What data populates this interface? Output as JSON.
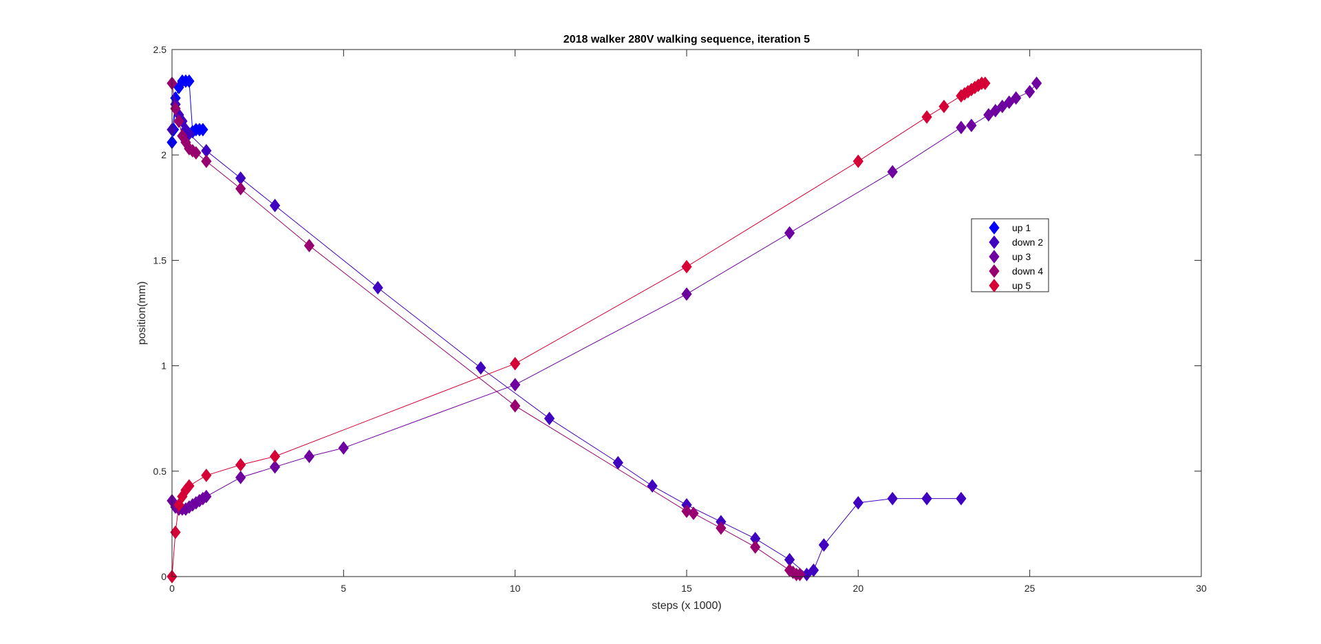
{
  "chart_data": {
    "type": "line",
    "title": "2018 walker 280V walking sequence, iteration 5",
    "xlabel": "steps (x 1000)",
    "ylabel": "position(mm)",
    "xlim": [
      0,
      30
    ],
    "ylim": [
      0,
      2.5
    ],
    "xticks": [
      "0",
      "5",
      "10",
      "15",
      "20",
      "25",
      "30"
    ],
    "yticks": [
      "0",
      "0.5",
      "1",
      "1.5",
      "2",
      "2.5"
    ],
    "grid": false,
    "legend": "right",
    "marker": "diamond",
    "series": [
      {
        "name": "up 1",
        "color": "#0000FF",
        "x": [
          0,
          0.05,
          0.1,
          0.2,
          0.3,
          0.4,
          0.5,
          0.6,
          0.7,
          0.8,
          0.9
        ],
        "y": [
          2.06,
          2.12,
          2.27,
          2.32,
          2.35,
          2.35,
          2.35,
          2.11,
          2.12,
          2.12,
          2.12
        ]
      },
      {
        "name": "down 2",
        "color": "#3F00C0",
        "x": [
          0,
          0.1,
          0.2,
          0.3,
          0.4,
          0.5,
          1,
          2,
          3,
          6,
          9,
          11,
          13,
          14,
          15,
          16,
          17,
          18,
          18.5,
          18.7,
          19,
          20,
          21,
          22,
          23
        ],
        "y": [
          2.12,
          2.24,
          2.19,
          2.16,
          2.12,
          2.1,
          2.02,
          1.89,
          1.76,
          1.37,
          0.99,
          0.75,
          0.54,
          0.43,
          0.34,
          0.26,
          0.18,
          0.08,
          0.01,
          0.03,
          0.15,
          0.35,
          0.37,
          0.37,
          0.37
        ]
      },
      {
        "name": "up 3",
        "color": "#6E00A0",
        "x": [
          0,
          0.1,
          0.2,
          0.3,
          0.4,
          0.5,
          0.6,
          0.7,
          0.8,
          0.9,
          1,
          2,
          3,
          4,
          5,
          10,
          15,
          18,
          21,
          23,
          23.3,
          23.8,
          24,
          24.2,
          24.4,
          24.6,
          25,
          25.2
        ],
        "y": [
          0.36,
          0.33,
          0.32,
          0.32,
          0.32,
          0.33,
          0.34,
          0.35,
          0.36,
          0.37,
          0.38,
          0.47,
          0.52,
          0.57,
          0.61,
          0.91,
          1.34,
          1.63,
          1.92,
          2.13,
          2.14,
          2.19,
          2.21,
          2.23,
          2.25,
          2.27,
          2.3,
          2.34
        ]
      },
      {
        "name": "down 4",
        "color": "#980070",
        "x": [
          0,
          0.1,
          0.2,
          0.3,
          0.4,
          0.5,
          0.6,
          0.7,
          1,
          2,
          4,
          10,
          15,
          15.2,
          16,
          17,
          18,
          18.1,
          18.2,
          18.3
        ],
        "y": [
          2.34,
          2.22,
          2.16,
          2.09,
          2.06,
          2.03,
          2.02,
          2.01,
          1.97,
          1.84,
          1.57,
          0.81,
          0.31,
          0.3,
          0.23,
          0.14,
          0.03,
          0.02,
          0.01,
          0.01
        ]
      },
      {
        "name": "up 5",
        "color": "#D50035",
        "x": [
          0,
          0.1,
          0.2,
          0.3,
          0.4,
          0.5,
          1,
          2,
          3,
          10,
          15,
          20,
          22,
          22.5,
          23,
          23.1,
          23.2,
          23.3,
          23.4,
          23.5,
          23.6,
          23.7
        ],
        "y": [
          0.0,
          0.21,
          0.34,
          0.38,
          0.41,
          0.43,
          0.48,
          0.53,
          0.57,
          1.01,
          1.47,
          1.97,
          2.18,
          2.23,
          2.28,
          2.29,
          2.3,
          2.31,
          2.32,
          2.33,
          2.34,
          2.34
        ]
      }
    ]
  }
}
